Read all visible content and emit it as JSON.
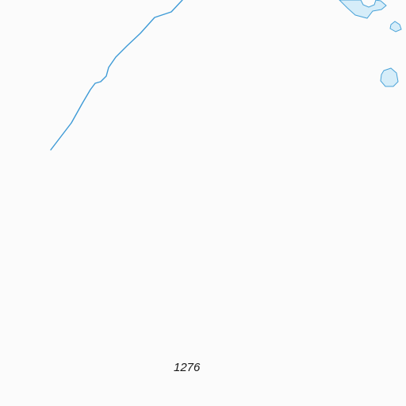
{
  "map": {
    "colors": {
      "background": "#fbfbfb",
      "water_fill": "#d6edf9",
      "water_stroke": "#4aa3d8",
      "river": "#3d9ad6",
      "label": "#1a1a1a"
    },
    "features": {
      "river": "stream",
      "ponds": [
        "lake",
        "pond",
        "pond"
      ]
    },
    "labels": {
      "elevation": "1276"
    }
  }
}
